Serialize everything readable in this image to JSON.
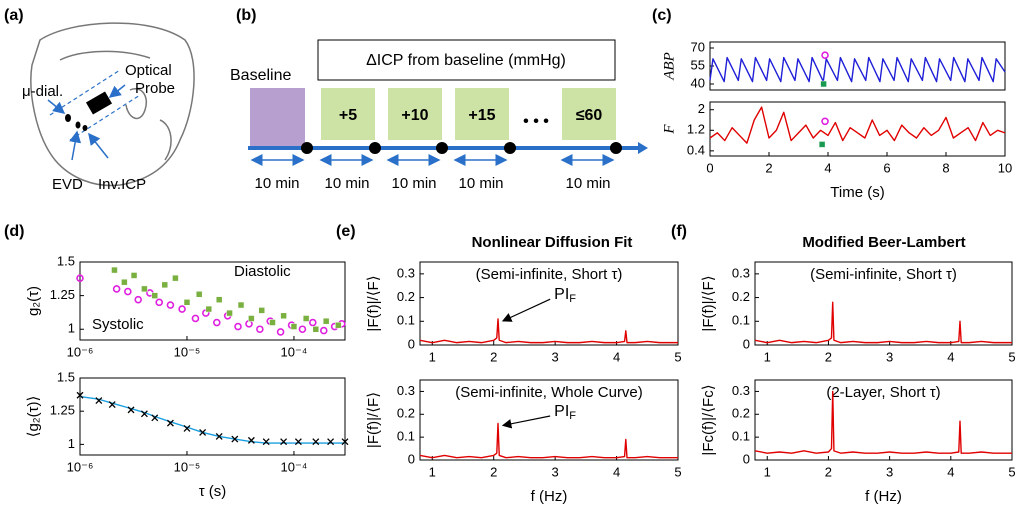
{
  "panels": [
    "(a)",
    "(b)",
    "(c)",
    "(d)",
    "(e)",
    "(f)"
  ],
  "diagram_a": {
    "probe": "Optical",
    "probe_line2": "Probe",
    "microdialysis": "μ-dial.",
    "evd": "EVD",
    "icp": "Inv.ICP"
  },
  "diagram_b": {
    "baseline": "Baseline",
    "header": "ΔICP from baseline (mmHg)",
    "steps": [
      "+5",
      "+10",
      "+15",
      "≤60"
    ],
    "ellipsis": "• • •",
    "durations": [
      "10 min",
      "10 min",
      "10 min",
      "10 min",
      "10 min"
    ]
  },
  "columns": [
    "Nonlinear Diffusion Fit",
    "Modified Beer-Lambert"
  ],
  "chart_data": [
    {
      "type": "line",
      "ylabel": "ABP",
      "xlim": [
        0,
        10
      ],
      "ylim": [
        35,
        75
      ],
      "yticks": [
        40,
        55,
        70
      ],
      "series": [
        {
          "color": "#1f1fd8",
          "x": [
            0,
            0.1,
            0.48,
            0.58,
            0.96,
            1.06,
            1.44,
            1.54,
            1.92,
            2.02,
            2.4,
            2.5,
            2.88,
            2.98,
            3.36,
            3.46,
            3.84,
            3.94,
            4.32,
            4.42,
            4.8,
            4.9,
            5.28,
            5.38,
            5.76,
            5.86,
            6.24,
            6.34,
            6.72,
            6.82,
            7.2,
            7.3,
            7.68,
            7.78,
            8.16,
            8.26,
            8.64,
            8.74,
            9.12,
            9.22,
            9.6,
            9.7,
            10
          ],
          "values": [
            43,
            61,
            42,
            62,
            43,
            61,
            42,
            62,
            43,
            61,
            42,
            62,
            43,
            61,
            42,
            62,
            42,
            61,
            43,
            62,
            42,
            61,
            43,
            62,
            42,
            61,
            43,
            62,
            42,
            61,
            43,
            62,
            42,
            61,
            43,
            62,
            42,
            61,
            43,
            62,
            42,
            61,
            50
          ]
        }
      ],
      "points": [
        {
          "x": 3.9,
          "y": 64,
          "color": "#e020e0",
          "marker": "circle"
        },
        {
          "x": 3.85,
          "y": 40,
          "color": "#1a9a50",
          "marker": "square"
        }
      ]
    },
    {
      "type": "line",
      "ylabel": "F",
      "xlabel": "Time (s)",
      "xlim": [
        0,
        10
      ],
      "ylim": [
        0.2,
        2.3
      ],
      "yticks": [
        0.4,
        1.2,
        2
      ],
      "xticks": [
        0,
        2,
        4,
        6,
        8,
        10
      ],
      "series": [
        {
          "color": "#e00000",
          "x": [
            0,
            0.25,
            0.5,
            0.75,
            1,
            1.25,
            1.5,
            1.75,
            2,
            2.25,
            2.5,
            2.75,
            3,
            3.25,
            3.5,
            3.75,
            4,
            4.25,
            4.5,
            4.75,
            5,
            5.25,
            5.5,
            5.75,
            6,
            6.25,
            6.5,
            6.75,
            7,
            7.25,
            7.5,
            7.75,
            8,
            8.25,
            8.5,
            8.75,
            9,
            9.25,
            9.5,
            9.75,
            10
          ],
          "values": [
            0.9,
            1.1,
            0.8,
            1.3,
            1.0,
            0.7,
            1.6,
            2.1,
            0.9,
            1.2,
            1.9,
            0.8,
            1.1,
            1.4,
            0.9,
            1.2,
            1.0,
            1.5,
            0.8,
            1.3,
            1.1,
            0.9,
            1.6,
            1.0,
            1.2,
            0.8,
            1.4,
            1.1,
            0.9,
            1.3,
            1.0,
            1.2,
            1.7,
            0.9,
            1.1,
            1.3,
            0.8,
            1.5,
            1.0,
            1.2,
            1.1
          ]
        }
      ],
      "points": [
        {
          "x": 3.9,
          "y": 1.55,
          "color": "#e020e0",
          "marker": "circle"
        },
        {
          "x": 3.8,
          "y": 0.65,
          "color": "#1a9a50",
          "marker": "square"
        }
      ]
    },
    {
      "type": "scatter",
      "ylabel": "g₂(τ)",
      "xscale": "log",
      "xlim": [
        1e-06,
        0.0003
      ],
      "ylim": [
        0.92,
        1.5
      ],
      "yticks": [
        1,
        1.25,
        1.5
      ],
      "xticks": [
        {
          "value": 1e-06,
          "label": "10⁻⁶"
        },
        {
          "value": 1e-05,
          "label": "10⁻⁵"
        },
        {
          "value": 0.0001,
          "label": "10⁻⁴"
        }
      ],
      "series": [
        {
          "name": "Systolic",
          "color": "#e020e0",
          "marker": "circle",
          "x": [
            1e-06,
            2.2e-06,
            2.8e-06,
            3.5e-06,
            4.5e-06,
            5.5e-06,
            7e-06,
            9e-06,
            1.2e-05,
            1.5e-05,
            1.9e-05,
            2.4e-05,
            3e-05,
            3.8e-05,
            4.8e-05,
            6e-05,
            7.5e-05,
            9.5e-05,
            0.00012,
            0.00015,
            0.00019,
            0.00024,
            0.00028
          ],
          "values": [
            1.38,
            1.3,
            1.28,
            1.22,
            1.27,
            1.2,
            1.18,
            1.15,
            1.08,
            1.12,
            1.05,
            1.1,
            1.02,
            1.04,
            1.0,
            1.06,
            0.98,
            1.03,
            1.0,
            1.05,
            0.99,
            1.02,
            1.04
          ]
        },
        {
          "name": "Diastolic",
          "color": "#7ab040",
          "marker": "square",
          "x": [
            2.1e-06,
            2.6e-06,
            3.2e-06,
            4e-06,
            5e-06,
            6.2e-06,
            7.8e-06,
            1e-05,
            1.3e-05,
            1.6e-05,
            2e-05,
            2.5e-05,
            3.2e-05,
            4e-05,
            5e-05,
            6.3e-05,
            8e-05,
            0.0001,
            0.00013,
            0.00016,
            0.0002,
            0.00026
          ],
          "values": [
            1.44,
            1.35,
            1.4,
            1.3,
            1.25,
            1.33,
            1.38,
            1.2,
            1.26,
            1.15,
            1.22,
            1.12,
            1.18,
            1.08,
            1.14,
            1.05,
            1.1,
            1.02,
            1.08,
            1.0,
            1.06,
            1.03
          ]
        }
      ]
    },
    {
      "type": "line",
      "ylabel": "⟨g₂(τ)⟩",
      "xlabel": "τ (s)",
      "xscale": "log",
      "xlim": [
        1e-06,
        0.0003
      ],
      "ylim": [
        0.92,
        1.5
      ],
      "yticks": [
        1,
        1.25,
        1.5
      ],
      "xticks": [
        {
          "value": 1e-06,
          "label": "10⁻⁶"
        },
        {
          "value": 1e-05,
          "label": "10⁻⁵"
        },
        {
          "value": 0.0001,
          "label": "10⁻⁴"
        }
      ],
      "series": [
        {
          "color": "#1a9fe0",
          "x": [
            1e-06,
            1.5e-06,
            2e-06,
            3e-06,
            4e-06,
            5e-06,
            7e-06,
            1e-05,
            1.4e-05,
            2e-05,
            2.8e-05,
            4e-05,
            5.5e-05,
            8e-05,
            0.00011,
            0.00016,
            0.00022,
            0.0003
          ],
          "values": [
            1.36,
            1.34,
            1.31,
            1.27,
            1.24,
            1.21,
            1.17,
            1.13,
            1.09,
            1.06,
            1.04,
            1.02,
            1.01,
            1.01,
            1.01,
            1.01,
            1.01,
            1.01
          ]
        },
        {
          "color": "#000000",
          "marker": "cross",
          "x": [
            1e-06,
            1.5e-06,
            2e-06,
            3e-06,
            4e-06,
            5e-06,
            7e-06,
            1e-05,
            1.4e-05,
            2e-05,
            2.8e-05,
            4e-05,
            5.5e-05,
            8e-05,
            0.00011,
            0.00016,
            0.00022,
            0.0003
          ],
          "values": [
            1.37,
            1.33,
            1.3,
            1.26,
            1.23,
            1.2,
            1.16,
            1.12,
            1.09,
            1.06,
            1.04,
            1.03,
            1.02,
            1.02,
            1.02,
            1.02,
            1.02,
            1.02
          ]
        }
      ]
    },
    {
      "type": "line",
      "subtitle": "(Semi-infinite, Short τ)",
      "ylabel": "|F(f)|/⟨F⟩",
      "annotation": {
        "text": "PI",
        "sub": "F"
      },
      "xlim": [
        0.8,
        5
      ],
      "ylim": [
        0,
        0.35
      ],
      "yticks": [
        0,
        0.1,
        0.2,
        0.3
      ],
      "xticks": [
        1,
        2,
        3,
        4,
        5
      ],
      "series": [
        {
          "color": "#e00000",
          "x": [
            0.8,
            1.0,
            1.2,
            1.4,
            1.6,
            1.8,
            2.0,
            2.05,
            2.07,
            2.09,
            2.2,
            2.4,
            2.6,
            2.8,
            3.0,
            3.2,
            3.4,
            3.6,
            3.8,
            4.0,
            4.13,
            4.15,
            4.17,
            4.3,
            4.5,
            4.7,
            4.9,
            5.0
          ],
          "values": [
            0.02,
            0.01,
            0.02,
            0.01,
            0.015,
            0.01,
            0.02,
            0.03,
            0.11,
            0.02,
            0.01,
            0.015,
            0.01,
            0.01,
            0.015,
            0.01,
            0.01,
            0.015,
            0.01,
            0.01,
            0.015,
            0.06,
            0.01,
            0.01,
            0.015,
            0.01,
            0.01,
            0.01
          ]
        }
      ]
    },
    {
      "type": "line",
      "subtitle": "(Semi-infinite, Whole Curve)",
      "ylabel": "|F(f)|/⟨F⟩",
      "xlabel": "f (Hz)",
      "annotation": {
        "text": "PI",
        "sub": "F"
      },
      "xlim": [
        0.8,
        5
      ],
      "ylim": [
        0,
        0.35
      ],
      "yticks": [
        0,
        0.1,
        0.2,
        0.3
      ],
      "xticks": [
        1,
        2,
        3,
        4,
        5
      ],
      "series": [
        {
          "color": "#e00000",
          "x": [
            0.8,
            1.0,
            1.2,
            1.4,
            1.6,
            1.8,
            2.0,
            2.05,
            2.07,
            2.09,
            2.2,
            2.4,
            2.6,
            2.8,
            3.0,
            3.2,
            3.4,
            3.6,
            3.8,
            4.0,
            4.13,
            4.15,
            4.17,
            4.3,
            4.5,
            4.7,
            4.9,
            5.0
          ],
          "values": [
            0.02,
            0.01,
            0.02,
            0.01,
            0.015,
            0.01,
            0.02,
            0.03,
            0.16,
            0.02,
            0.01,
            0.015,
            0.01,
            0.01,
            0.015,
            0.01,
            0.01,
            0.015,
            0.01,
            0.01,
            0.015,
            0.09,
            0.01,
            0.01,
            0.015,
            0.01,
            0.01,
            0.01
          ]
        }
      ]
    },
    {
      "type": "line",
      "subtitle": "(Semi-infinite, Short τ)",
      "ylabel": "|F(f)|/⟨F⟩",
      "xlim": [
        0.8,
        5
      ],
      "ylim": [
        0,
        0.35
      ],
      "yticks": [
        0,
        0.1,
        0.2,
        0.3
      ],
      "xticks": [
        1,
        2,
        3,
        4,
        5
      ],
      "series": [
        {
          "color": "#e00000",
          "x": [
            0.8,
            1.0,
            1.2,
            1.4,
            1.6,
            1.8,
            2.0,
            2.05,
            2.07,
            2.09,
            2.2,
            2.4,
            2.6,
            2.8,
            3.0,
            3.2,
            3.4,
            3.6,
            3.8,
            4.0,
            4.13,
            4.15,
            4.17,
            4.3,
            4.5,
            4.7,
            4.9,
            5.0
          ],
          "values": [
            0.02,
            0.01,
            0.02,
            0.01,
            0.015,
            0.01,
            0.02,
            0.03,
            0.18,
            0.02,
            0.01,
            0.015,
            0.01,
            0.01,
            0.015,
            0.01,
            0.01,
            0.015,
            0.01,
            0.01,
            0.015,
            0.1,
            0.01,
            0.01,
            0.015,
            0.01,
            0.01,
            0.01
          ]
        }
      ]
    },
    {
      "type": "line",
      "subtitle": "(2-Layer, Short τ)",
      "ylabel": "|Fc(f)|/⟨Fc⟩",
      "xlabel": "f (Hz)",
      "xlim": [
        0.8,
        5
      ],
      "ylim": [
        0,
        0.35
      ],
      "yticks": [
        0,
        0.1,
        0.2,
        0.3
      ],
      "xticks": [
        1,
        2,
        3,
        4,
        5
      ],
      "series": [
        {
          "color": "#e00000",
          "x": [
            0.8,
            1.0,
            1.2,
            1.4,
            1.6,
            1.8,
            2.0,
            2.05,
            2.07,
            2.09,
            2.2,
            2.4,
            2.6,
            2.8,
            3.0,
            3.2,
            3.4,
            3.6,
            3.8,
            4.0,
            4.13,
            4.15,
            4.17,
            4.3,
            4.5,
            4.7,
            4.9,
            5.0
          ],
          "values": [
            0.04,
            0.03,
            0.035,
            0.03,
            0.04,
            0.03,
            0.035,
            0.05,
            0.3,
            0.04,
            0.03,
            0.035,
            0.03,
            0.03,
            0.035,
            0.03,
            0.03,
            0.035,
            0.03,
            0.03,
            0.035,
            0.17,
            0.03,
            0.03,
            0.035,
            0.03,
            0.03,
            0.03
          ]
        }
      ]
    }
  ]
}
